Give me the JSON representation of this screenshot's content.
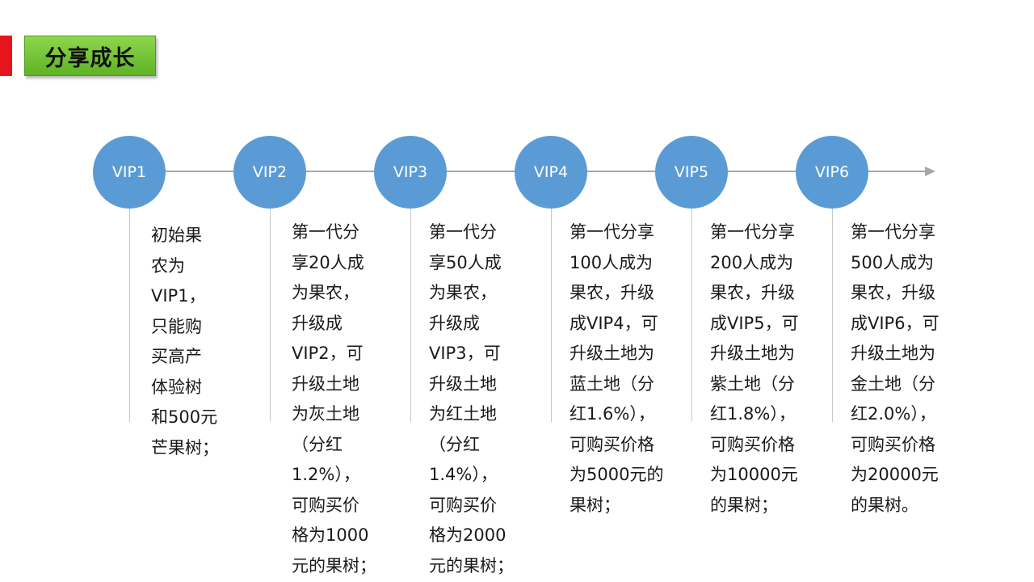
{
  "header": {
    "title": "分享成长",
    "accent_color": "#e8141c",
    "title_bg_color": "#6fbf35"
  },
  "timeline": {
    "circle_color": "#5b9bd5",
    "line_color": "#a6a6a6",
    "levels": [
      {
        "label": "VIP1",
        "description": "初始果\n农为\nVIP1，\n只能购\n买高产\n体验树\n和500元\n芒果树；"
      },
      {
        "label": "VIP2",
        "description": "第一代分\n享20人成\n为果农，\n升级成\nVIP2，可\n升级土地\n为灰土地\n（分红\n1.2%），\n可购买价\n格为1000\n元的果树；"
      },
      {
        "label": "VIP3",
        "description": "第一代分\n享50人成\n为果农，\n升级成\nVIP3，可\n升级土地\n为红土地\n（分红\n1.4%），\n可购买价\n格为2000\n元的果树；"
      },
      {
        "label": "VIP4",
        "description": "第一代分享\n100人成为\n果农，升级\n成VIP4，可\n升级土地为\n蓝土地（分\n红1.6%），\n可购买价格\n为5000元的\n果树；"
      },
      {
        "label": "VIP5",
        "description": "第一代分享\n200人成为\n果农，升级\n成VIP5，可\n升级土地为\n紫土地（分\n红1.8%），\n可购买价格\n为10000元\n的果树；"
      },
      {
        "label": "VIP6",
        "description": "第一代分享\n500人成为\n果农，升级\n成VIP6，可\n升级土地为\n金土地（分\n红2.0%），\n可购买价格\n为20000元\n的果树。"
      }
    ]
  }
}
